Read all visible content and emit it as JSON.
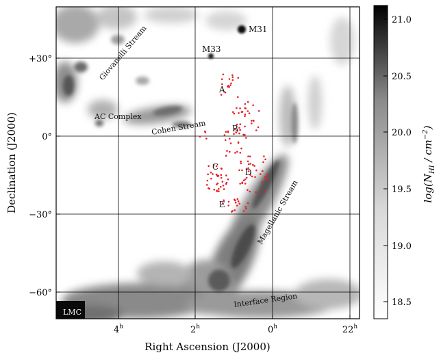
{
  "map": {
    "xlabel": "Right Ascension (J2000)",
    "ylabel": "Declination (J2000)",
    "ra_ticks": [
      {
        "ra": 4,
        "label": "4",
        "sup": "h"
      },
      {
        "ra": 2,
        "label": "2",
        "sup": "h"
      },
      {
        "ra": 0,
        "label": "0",
        "sup": "h"
      },
      {
        "ra": 22,
        "label": "22",
        "sup": "h"
      }
    ],
    "dec_ticks": [
      {
        "dec": 30,
        "label": "+30°"
      },
      {
        "dec": 0,
        "label": "0°"
      },
      {
        "dec": -30,
        "label": "−30°"
      },
      {
        "dec": -60,
        "label": "−60°"
      }
    ],
    "labels": {
      "m31": "M31",
      "m33": "M33",
      "giovanelli": "Giovanelli Stream",
      "ac_complex": "AC Complex",
      "cohen": "Cohen Stream",
      "magellanic": "Magellanic Stream",
      "interface": "Interface Region",
      "lmc": "LMC",
      "region_a": "A",
      "region_b": "B",
      "region_c": "C",
      "region_d": "D",
      "region_e": "E"
    },
    "point_color": "#e8202a"
  },
  "colorbar": {
    "label_main": "log(N",
    "label_sub": "HI",
    "label_unit": " / cm",
    "label_exp": "−2",
    "label_close": ")",
    "ticks": [
      "21.0",
      "20.5",
      "20.0",
      "19.5",
      "19.0",
      "18.5"
    ],
    "range": [
      18.4,
      21.1
    ]
  }
}
